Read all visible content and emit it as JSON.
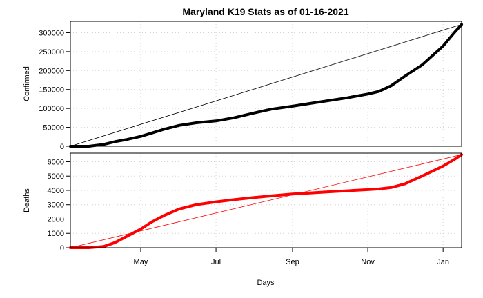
{
  "chart_data": {
    "type": "line",
    "title": "Maryland K19 Stats as of 01-16-2021",
    "xlabel": "Days",
    "x_ticks": [
      "May",
      "Jul",
      "Sep",
      "Nov",
      "Jan"
    ],
    "grid": true,
    "panels": [
      {
        "ylabel": "Confirmed",
        "color": "#000000",
        "ylim": [
          0,
          330000
        ],
        "y_ticks": [
          "0",
          "50000",
          "100000",
          "150000",
          "200000",
          "250000",
          "300000"
        ],
        "series": [
          {
            "x": [
              "2020-03-05",
              "2020-03-20",
              "2020-04-01",
              "2020-04-10",
              "2020-04-20",
              "2020-05-01",
              "2020-05-10",
              "2020-05-20",
              "2020-06-01",
              "2020-06-15",
              "2020-07-01",
              "2020-07-15",
              "2020-08-01",
              "2020-08-15",
              "2020-09-01",
              "2020-09-15",
              "2020-10-01",
              "2020-10-15",
              "2020-11-01",
              "2020-11-10",
              "2020-11-20",
              "2020-12-01",
              "2020-12-15",
              "2021-01-01",
              "2021-01-10",
              "2021-01-16"
            ],
            "y": [
              0,
              0,
              5000,
              12000,
              18000,
              26000,
              35000,
              45000,
              55000,
              62000,
              67000,
              75000,
              88000,
              98000,
              106000,
              113000,
              121000,
              128000,
              138000,
              145000,
              160000,
              185000,
              215000,
              265000,
              300000,
              322000
            ]
          }
        ],
        "trend": [
          [
            0,
            0
          ],
          [
            322000,
            322000
          ]
        ]
      },
      {
        "ylabel": "Deaths",
        "color": "#ff0000",
        "ylim": [
          0,
          6600
        ],
        "y_ticks": [
          "0",
          "1000",
          "2000",
          "3000",
          "4000",
          "5000",
          "6000"
        ],
        "series": [
          {
            "x": [
              "2020-03-05",
              "2020-03-20",
              "2020-04-01",
              "2020-04-10",
              "2020-04-20",
              "2020-05-01",
              "2020-05-10",
              "2020-05-20",
              "2020-06-01",
              "2020-06-15",
              "2020-07-01",
              "2020-07-15",
              "2020-08-01",
              "2020-08-15",
              "2020-09-01",
              "2020-09-15",
              "2020-10-01",
              "2020-10-15",
              "2020-11-01",
              "2020-11-10",
              "2020-11-20",
              "2020-12-01",
              "2020-12-15",
              "2021-01-01",
              "2021-01-10",
              "2021-01-16"
            ],
            "y": [
              0,
              0,
              80,
              350,
              800,
              1300,
              1800,
              2250,
              2700,
              3000,
              3200,
              3350,
              3500,
              3620,
              3750,
              3820,
              3900,
              3970,
              4050,
              4100,
              4200,
              4450,
              5000,
              5700,
              6150,
              6500
            ]
          }
        ],
        "trend": [
          [
            0,
            0
          ],
          [
            6500,
            6500
          ]
        ]
      }
    ]
  }
}
